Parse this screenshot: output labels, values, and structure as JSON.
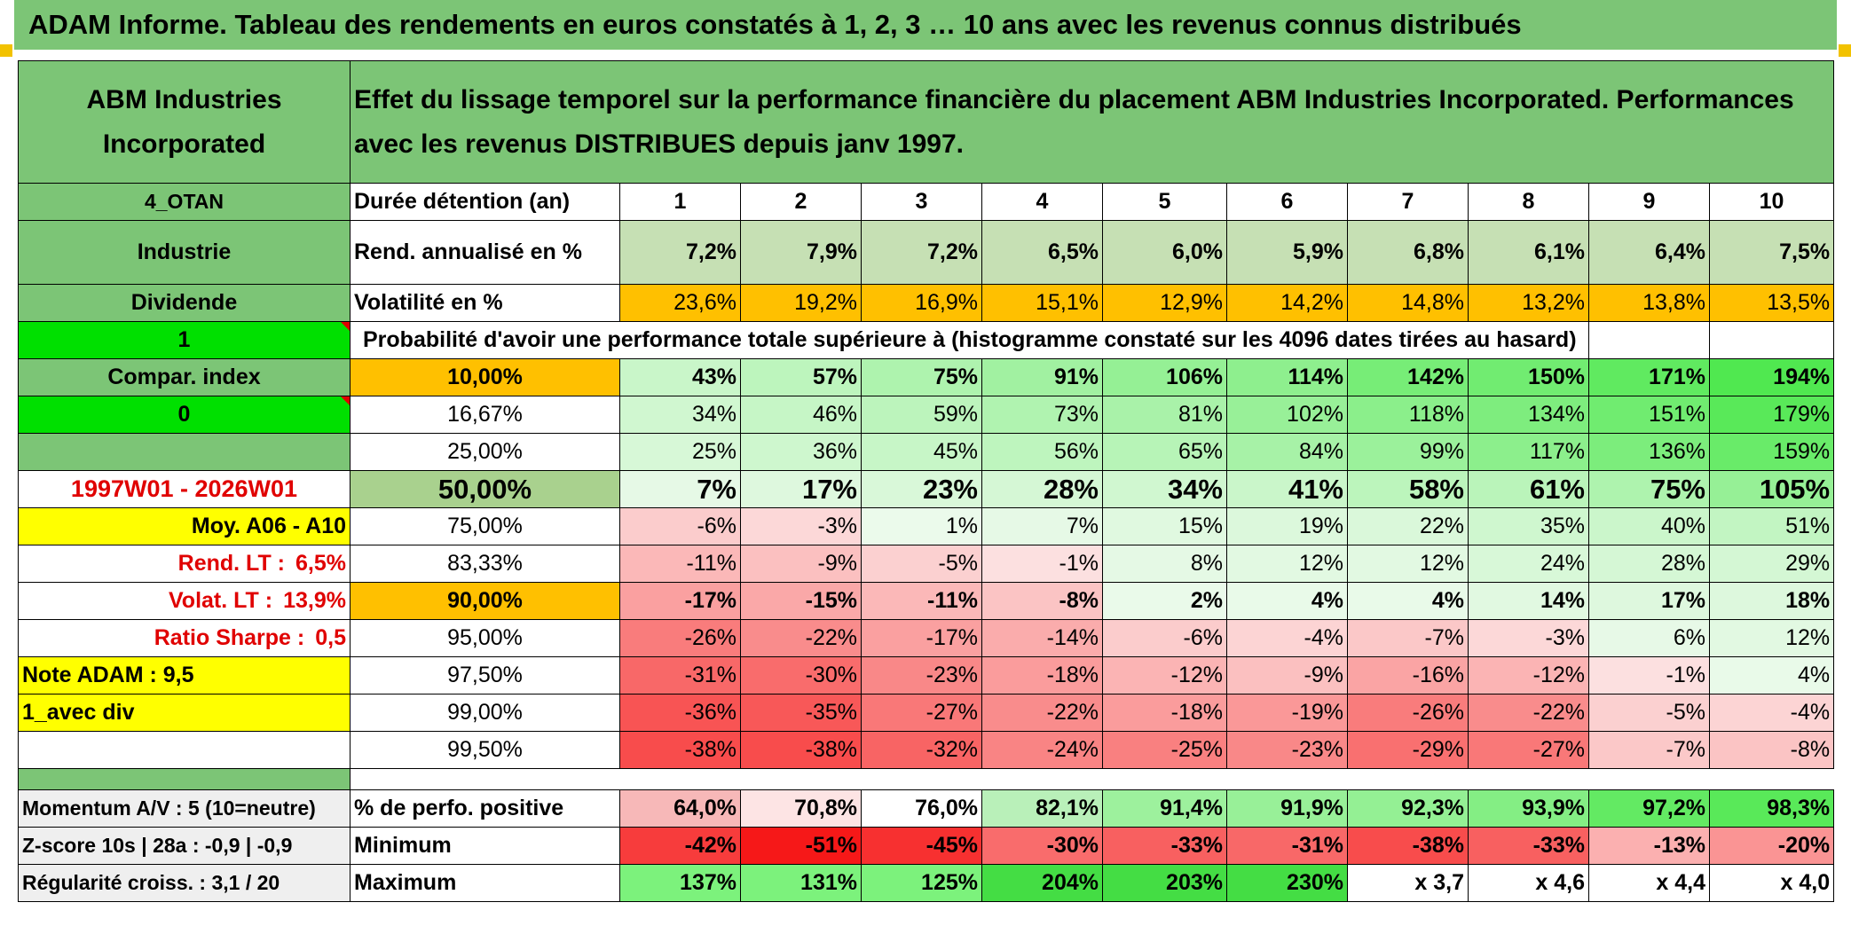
{
  "title": "ADAM Informe. Tableau des rendements en euros constatés à 1, 2, 3 … 10 ans avec les revenus connus distribués",
  "header": {
    "name": "ABM Industries Incorporated",
    "description": "Effet du lissage temporel sur la performance financière du placement ABM Industries Incorporated. Performances avec les revenus DISTRIBUES depuis janv 1997."
  },
  "left": {
    "code": "4_OTAN",
    "sector": "Industrie",
    "dividend": "Dividende",
    "one": "1",
    "compar": "Compar. index",
    "zero": "0",
    "period": "1997W01 - 2026W01",
    "moy": "Moy. A06 - A10",
    "rend_label": "Rend. LT :",
    "rend_value": "6,5%",
    "volat_label": "Volat. LT :",
    "volat_value": "13,9%",
    "sharpe_label": "Ratio Sharpe :",
    "sharpe_value": "0,5",
    "note": "Note ADAM : 9,5",
    "div_mode": "1_avec div"
  },
  "labels": {
    "duree": "Durée détention (an)",
    "rend": "Rend. annualisé en %",
    "vol": "Volatilité en %",
    "proba": "Probabilité d'avoir une performance totale supérieure à (histogramme constaté sur les 4096 dates tirées au hasard)"
  },
  "years": [
    "1",
    "2",
    "3",
    "4",
    "5",
    "6",
    "7",
    "8",
    "9",
    "10"
  ],
  "rend_values": [
    "7,2%",
    "7,9%",
    "7,2%",
    "6,5%",
    "6,0%",
    "5,9%",
    "6,8%",
    "6,1%",
    "6,4%",
    "7,5%"
  ],
  "vol_values": [
    "23,6%",
    "19,2%",
    "16,9%",
    "15,1%",
    "12,9%",
    "14,2%",
    "14,8%",
    "13,2%",
    "13,8%",
    "13,5%"
  ],
  "prob_rows": [
    {
      "pct": "10,00%",
      "values": [
        "43%",
        "57%",
        "75%",
        "91%",
        "106%",
        "114%",
        "142%",
        "150%",
        "171%",
        "194%"
      ]
    },
    {
      "pct": "16,67%",
      "values": [
        "34%",
        "46%",
        "59%",
        "73%",
        "81%",
        "102%",
        "118%",
        "134%",
        "151%",
        "179%"
      ]
    },
    {
      "pct": "25,00%",
      "values": [
        "25%",
        "36%",
        "45%",
        "56%",
        "65%",
        "84%",
        "99%",
        "117%",
        "136%",
        "159%"
      ]
    },
    {
      "pct": "50,00%",
      "values": [
        "7%",
        "17%",
        "23%",
        "28%",
        "34%",
        "41%",
        "58%",
        "61%",
        "75%",
        "105%"
      ]
    },
    {
      "pct": "75,00%",
      "values": [
        "-6%",
        "-3%",
        "1%",
        "7%",
        "15%",
        "19%",
        "22%",
        "35%",
        "40%",
        "51%"
      ]
    },
    {
      "pct": "83,33%",
      "values": [
        "-11%",
        "-9%",
        "-5%",
        "-1%",
        "8%",
        "12%",
        "12%",
        "24%",
        "28%",
        "29%"
      ]
    },
    {
      "pct": "90,00%",
      "values": [
        "-17%",
        "-15%",
        "-11%",
        "-8%",
        "2%",
        "4%",
        "4%",
        "14%",
        "17%",
        "18%"
      ]
    },
    {
      "pct": "95,00%",
      "values": [
        "-26%",
        "-22%",
        "-17%",
        "-14%",
        "-6%",
        "-4%",
        "-7%",
        "-3%",
        "6%",
        "12%"
      ]
    },
    {
      "pct": "97,50%",
      "values": [
        "-31%",
        "-30%",
        "-23%",
        "-18%",
        "-12%",
        "-9%",
        "-16%",
        "-12%",
        "-1%",
        "4%"
      ]
    },
    {
      "pct": "99,00%",
      "values": [
        "-36%",
        "-35%",
        "-27%",
        "-22%",
        "-18%",
        "-19%",
        "-26%",
        "-22%",
        "-5%",
        "-4%"
      ]
    },
    {
      "pct": "99,50%",
      "values": [
        "-38%",
        "-38%",
        "-32%",
        "-24%",
        "-25%",
        "-23%",
        "-29%",
        "-27%",
        "-7%",
        "-8%"
      ]
    }
  ],
  "bottom": {
    "momentum": "Momentum A/V : 5 (10=neutre)",
    "zscore": "Z-score 10s | 28a : -0,9 | -0,9",
    "regularite": "Régularité croiss. : 3,1 / 20",
    "pos_label": "% de perfo. positive",
    "min_label": "Minimum",
    "max_label": "Maximum",
    "pos_values": [
      "64,0%",
      "70,8%",
      "76,0%",
      "82,1%",
      "91,4%",
      "91,9%",
      "92,3%",
      "93,9%",
      "97,2%",
      "98,3%"
    ],
    "min_values": [
      "-42%",
      "-51%",
      "-45%",
      "-30%",
      "-33%",
      "-31%",
      "-38%",
      "-33%",
      "-13%",
      "-20%"
    ],
    "max_values": [
      "137%",
      "131%",
      "125%",
      "204%",
      "203%",
      "230%",
      "x 3,7",
      "x 4,6",
      "x 4,4",
      "x 4,0"
    ]
  },
  "colors": {
    "header_green": "#7cc576",
    "bright_green": "#00e000",
    "highlight_yellow": "#ffff00",
    "highlight_orange": "#ffc000",
    "alert_red": "#e00000"
  }
}
